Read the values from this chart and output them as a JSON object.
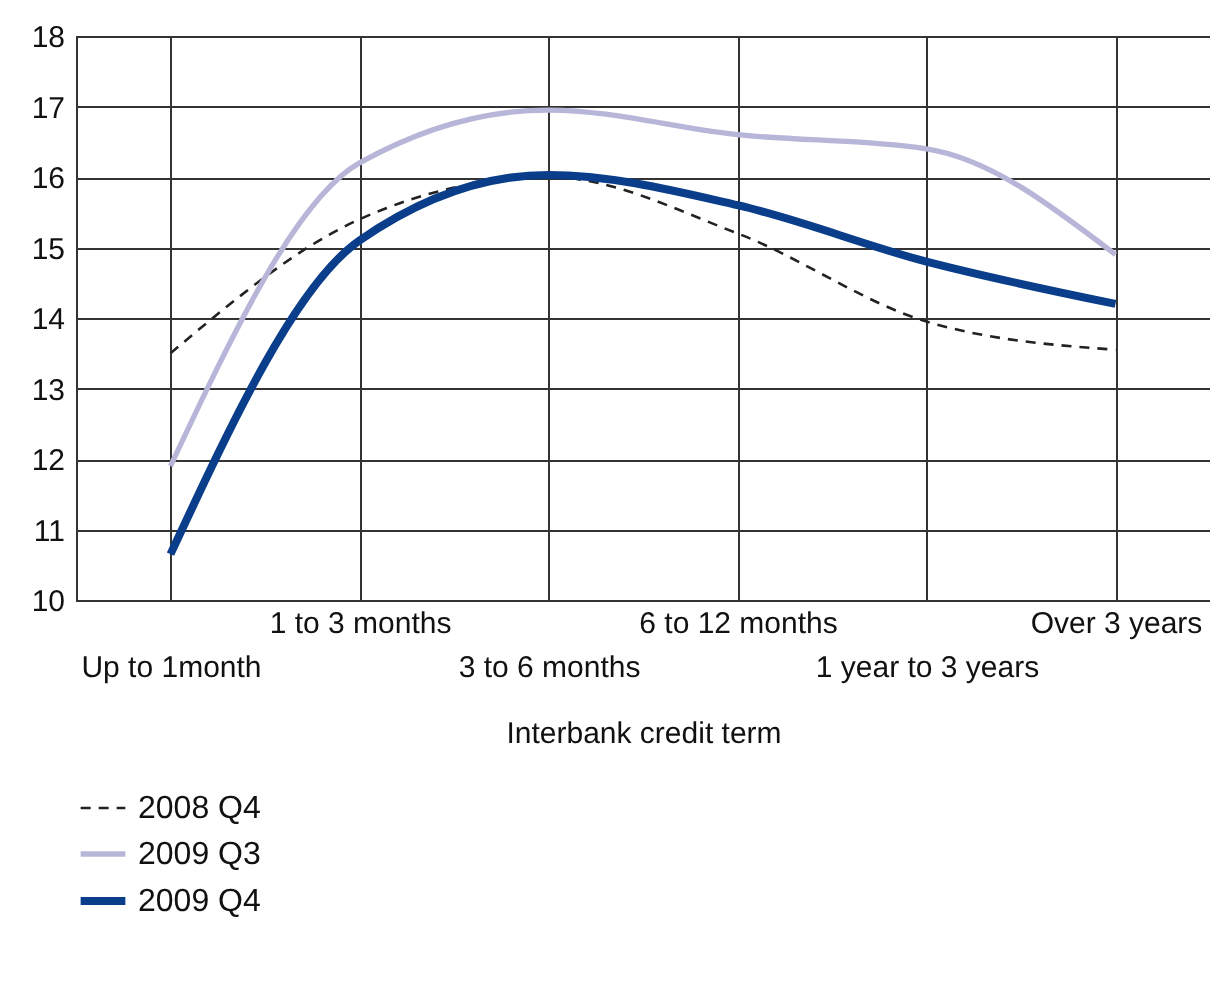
{
  "chart_data": {
    "type": "line",
    "xlabel": "Interbank credit term",
    "categories": [
      "Up to 1month",
      "1 to 3 months",
      "3 to 6 months",
      "6 to 12 months",
      "1 year to 3 years",
      "Over 3 years"
    ],
    "ylim": [
      10,
      18
    ],
    "yticks": [
      10,
      11,
      12,
      13,
      14,
      15,
      16,
      17,
      18
    ],
    "grid": true,
    "legend": "bottom",
    "series": [
      {
        "name": "2008 Q4",
        "color": "#222222",
        "line_style": "dashed",
        "values": [
          13.5,
          15.4,
          16.0,
          15.2,
          13.95,
          13.55
        ]
      },
      {
        "name": "2009 Q3",
        "color": "#b8b6d8",
        "line_style": "solid",
        "values": [
          11.9,
          16.2,
          16.95,
          16.6,
          16.4,
          14.9
        ]
      },
      {
        "name": "2009 Q4",
        "color": "#0a3d8a",
        "line_style": "solid",
        "values": [
          10.65,
          15.1,
          16.03,
          15.6,
          14.8,
          14.2
        ]
      }
    ]
  }
}
